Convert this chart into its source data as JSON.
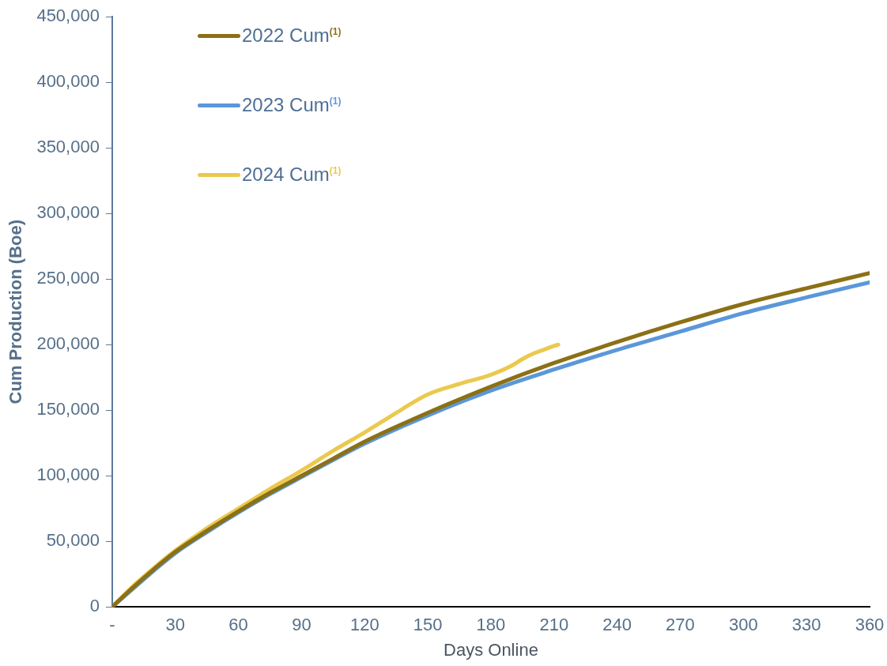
{
  "chart_data": {
    "type": "line",
    "xlabel": "Days Online",
    "ylabel": "Cum Production (Boe)",
    "xlim": [
      0,
      360
    ],
    "xticks": [
      {
        "value": 0,
        "label": "-"
      },
      30,
      60,
      90,
      120,
      150,
      180,
      210,
      240,
      270,
      300,
      330,
      360
    ],
    "ylim": [
      0,
      450000
    ],
    "yticks": [
      0,
      {
        "value": 50000,
        "label": "50,000"
      },
      {
        "value": 100000,
        "label": "100,000"
      },
      {
        "value": 150000,
        "label": "150,000"
      },
      {
        "value": 200000,
        "label": "200,000"
      },
      {
        "value": 250000,
        "label": "250,000"
      },
      {
        "value": 300000,
        "label": "300,000"
      },
      {
        "value": 350000,
        "label": "350,000"
      },
      {
        "value": 400000,
        "label": "400,000"
      },
      {
        "value": 450000,
        "label": "450,000"
      }
    ],
    "grid": false,
    "legend": "top left",
    "marker": "none",
    "line_style": "solid",
    "series": [
      {
        "name": "2022 Cum$^{(1)}$",
        "color": "#8b7015",
        "x": [
          0,
          10,
          20,
          30,
          45,
          60,
          75,
          90,
          105,
          120,
          150,
          180,
          210,
          240,
          270,
          300,
          330,
          360
        ],
        "values": [
          0,
          15000,
          29000,
          42000,
          58000,
          73000,
          87000,
          100000,
          113000,
          126000,
          148000,
          168000,
          186000,
          202000,
          217000,
          231000,
          243000,
          254500
        ]
      },
      {
        "name": "2023 Cum$^{(1)}$",
        "color": "#5b97d9",
        "x": [
          0,
          10,
          20,
          30,
          45,
          60,
          75,
          90,
          105,
          120,
          150,
          180,
          210,
          240,
          270,
          300,
          330,
          360
        ],
        "values": [
          0,
          14000,
          28000,
          41000,
          57000,
          72000,
          86000,
          99000,
          112000,
          124500,
          146000,
          165000,
          181000,
          196000,
          210000,
          224000,
          236000,
          247500
        ]
      },
      {
        "name": "2024 Cum$^{(1)}$",
        "color": "#ebc94e",
        "x": [
          0,
          10,
          20,
          30,
          45,
          60,
          75,
          90,
          105,
          120,
          135,
          150,
          165,
          180,
          190,
          195,
          200,
          205,
          210,
          212
        ],
        "values": [
          0,
          16000,
          30000,
          43000,
          60000,
          75000,
          90000,
          104000,
          119000,
          133000,
          148000,
          162000,
          170000,
          177000,
          184000,
          189000,
          193000,
          196000,
          199000,
          200000
        ]
      }
    ]
  }
}
